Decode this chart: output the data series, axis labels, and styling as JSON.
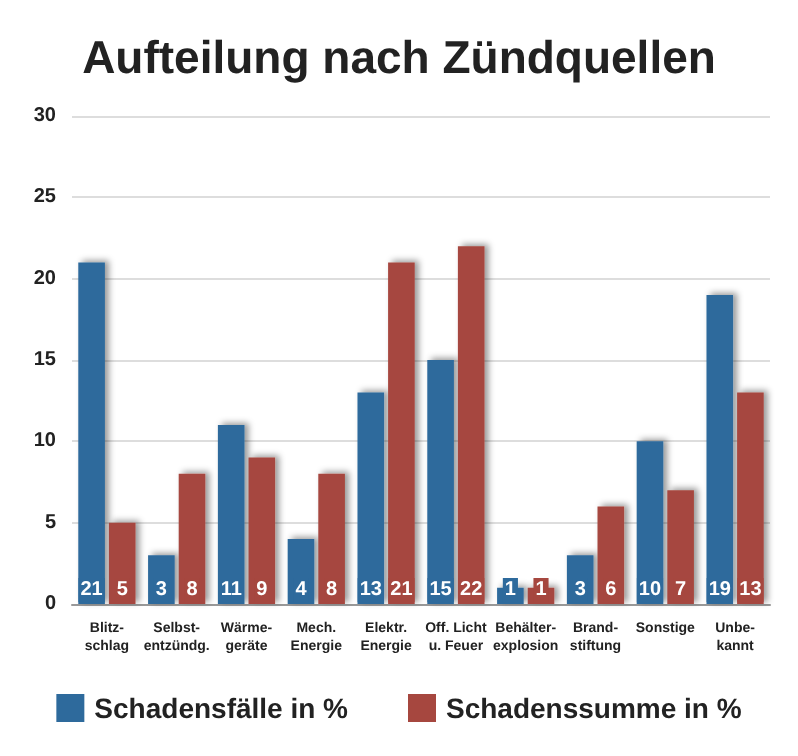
{
  "chart_data": {
    "type": "bar",
    "title": "Aufteilung nach Zündquellen",
    "categories": [
      "Blitz-\nschlag",
      "Selbst-\nentzündg.",
      "Wärme-\ngeräte",
      "Mech.\nEnergie",
      "Elektr.\nEnergie",
      "Off. Licht\nu. Feuer",
      "Behälter-\nexplosion",
      "Brand-\nstiftung",
      "Sonstige",
      "Unbe-\nkannt"
    ],
    "series": [
      {
        "name": "Schadensfälle in %",
        "color": "#2e6a9c",
        "values": [
          21,
          3,
          11,
          4,
          13,
          15,
          1,
          3,
          10,
          19
        ]
      },
      {
        "name": "Schadenssumme in %",
        "color": "#a6473f",
        "values": [
          5,
          8,
          9,
          8,
          21,
          22,
          1,
          6,
          7,
          13
        ]
      }
    ],
    "ylim": [
      0,
      30
    ],
    "yticks": [
      0,
      5,
      10,
      15,
      20,
      25,
      30
    ],
    "grid": "y",
    "legend": "bottom",
    "data_labels": true
  }
}
